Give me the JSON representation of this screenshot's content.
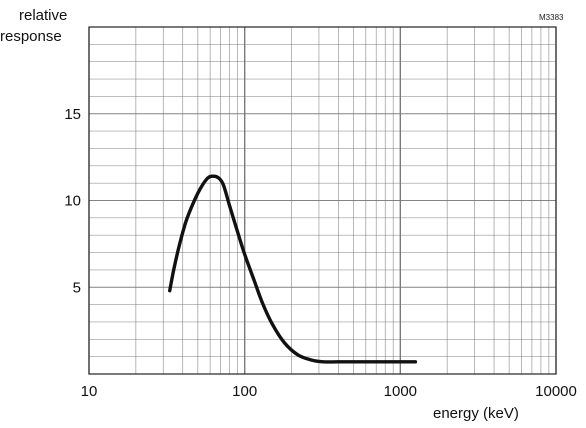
{
  "figure_code": "M3383",
  "chart_data": {
    "type": "line",
    "title": "",
    "xlabel": "energy (keV)",
    "ylabel_lines": [
      "relative",
      "response"
    ],
    "x_scale": "log",
    "xlim": [
      10,
      10000
    ],
    "ylim": [
      0,
      20
    ],
    "grid": true,
    "x_ticks": [
      10,
      100,
      1000,
      10000
    ],
    "x_tick_labels": [
      "10",
      "100",
      "1000",
      "10000"
    ],
    "y_ticks": [
      5,
      10,
      15
    ],
    "y_tick_labels": [
      "5",
      "10",
      "15"
    ],
    "series": [
      {
        "x": [
          33,
          35,
          38,
          42,
          47,
          52,
          58,
          63,
          68,
          73,
          80,
          90,
          100,
          115,
          130,
          150,
          180,
          220,
          270,
          320,
          400,
          600,
          800,
          1000,
          1250
        ],
        "y": [
          4.8,
          6.0,
          7.4,
          8.8,
          9.9,
          10.7,
          11.3,
          11.4,
          11.3,
          10.9,
          9.7,
          8.2,
          6.9,
          5.4,
          4.1,
          2.9,
          1.8,
          1.1,
          0.8,
          0.7,
          0.7,
          0.7,
          0.7,
          0.7,
          0.7
        ]
      }
    ],
    "colors": {
      "line": "#111111",
      "grid": "#777777",
      "border": "#222222"
    }
  }
}
